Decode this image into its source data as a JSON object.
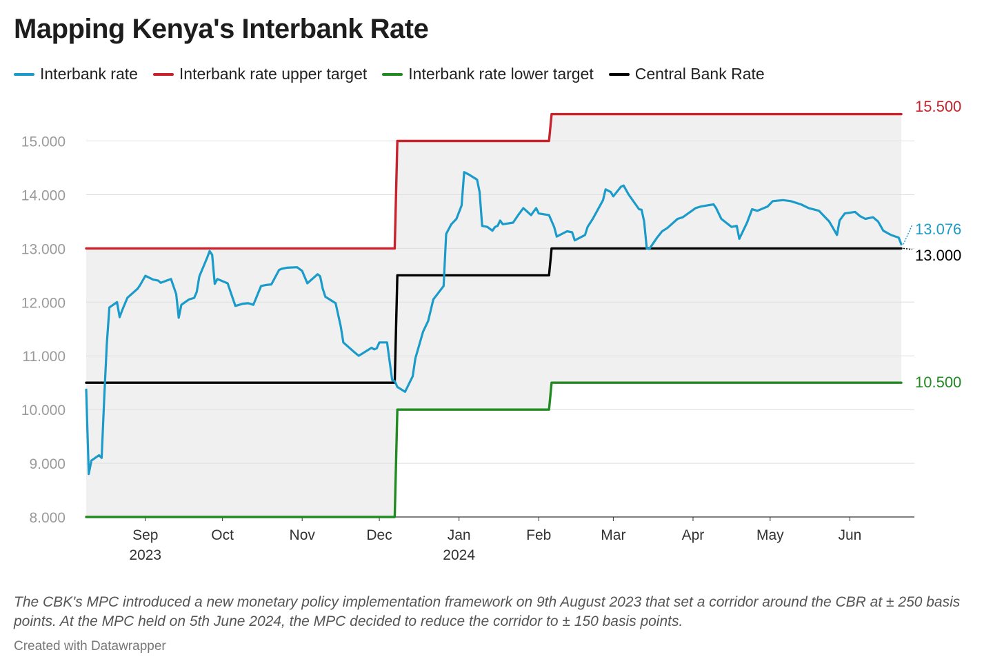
{
  "title": "Mapping Kenya's Interbank Rate",
  "notes": "The CBK's MPC introduced a new monetary policy implementation framework on 9th August 2023 that set a corridor around the CBR at ± 250 basis points. At the MPC held on 5th June 2024, the MPC decided to reduce the corridor to ± 150 basis points.",
  "credit": "Created with Datawrapper",
  "chart_data": {
    "type": "line",
    "y_ticks": [
      "8.000",
      "9.000",
      "10.000",
      "11.000",
      "12.000",
      "13.000",
      "14.000",
      "15.000"
    ],
    "ylim": [
      8,
      15.7
    ],
    "grid": true,
    "legend_position": "top",
    "x_tick_labels": [
      {
        "date": "2023-09-01",
        "label": "Sep",
        "year": "2023"
      },
      {
        "date": "2023-10-01",
        "label": "Oct",
        "year": ""
      },
      {
        "date": "2023-11-01",
        "label": "Nov",
        "year": ""
      },
      {
        "date": "2023-12-01",
        "label": "Dec",
        "year": ""
      },
      {
        "date": "2024-01-01",
        "label": "Jan",
        "year": "2024"
      },
      {
        "date": "2024-02-01",
        "label": "Feb",
        "year": ""
      },
      {
        "date": "2024-03-01",
        "label": "Mar",
        "year": ""
      },
      {
        "date": "2024-04-01",
        "label": "Apr",
        "year": ""
      },
      {
        "date": "2024-05-01",
        "label": "May",
        "year": ""
      },
      {
        "date": "2024-06-01",
        "label": "Jun",
        "year": ""
      }
    ],
    "series": [
      {
        "name": "Interbank rate",
        "color": "#1a9bc9",
        "end_label": "13.076",
        "points": [
          [
            "2023-08-09",
            10.37
          ],
          [
            "2023-08-10",
            8.8
          ],
          [
            "2023-08-11",
            9.05
          ],
          [
            "2023-08-14",
            9.15
          ],
          [
            "2023-08-15",
            9.1
          ],
          [
            "2023-08-16",
            10.2
          ],
          [
            "2023-08-17",
            11.2
          ],
          [
            "2023-08-18",
            11.9
          ],
          [
            "2023-08-21",
            12.0
          ],
          [
            "2023-08-22",
            11.72
          ],
          [
            "2023-08-23",
            11.85
          ],
          [
            "2023-08-25",
            12.08
          ],
          [
            "2023-08-29",
            12.25
          ],
          [
            "2023-08-30",
            12.32
          ],
          [
            "2023-09-01",
            12.49
          ],
          [
            "2023-09-04",
            12.42
          ],
          [
            "2023-09-06",
            12.4
          ],
          [
            "2023-09-07",
            12.36
          ],
          [
            "2023-09-11",
            12.43
          ],
          [
            "2023-09-13",
            12.15
          ],
          [
            "2023-09-14",
            11.71
          ],
          [
            "2023-09-15",
            11.95
          ],
          [
            "2023-09-18",
            12.05
          ],
          [
            "2023-09-20",
            12.08
          ],
          [
            "2023-09-21",
            12.19
          ],
          [
            "2023-09-22",
            12.48
          ],
          [
            "2023-09-25",
            12.82
          ],
          [
            "2023-09-26",
            12.95
          ],
          [
            "2023-09-27",
            12.88
          ],
          [
            "2023-09-28",
            12.34
          ],
          [
            "2023-09-29",
            12.43
          ],
          [
            "2023-10-03",
            12.35
          ],
          [
            "2023-10-06",
            11.93
          ],
          [
            "2023-10-09",
            11.97
          ],
          [
            "2023-10-11",
            11.98
          ],
          [
            "2023-10-13",
            11.95
          ],
          [
            "2023-10-16",
            12.3
          ],
          [
            "2023-10-18",
            12.32
          ],
          [
            "2023-10-20",
            12.33
          ],
          [
            "2023-10-23",
            12.6
          ],
          [
            "2023-10-24",
            12.62
          ],
          [
            "2023-10-26",
            12.64
          ],
          [
            "2023-10-30",
            12.65
          ],
          [
            "2023-11-01",
            12.58
          ],
          [
            "2023-11-03",
            12.35
          ],
          [
            "2023-11-07",
            12.52
          ],
          [
            "2023-11-08",
            12.48
          ],
          [
            "2023-11-09",
            12.25
          ],
          [
            "2023-11-10",
            12.1
          ],
          [
            "2023-11-14",
            11.98
          ],
          [
            "2023-11-16",
            11.55
          ],
          [
            "2023-11-17",
            11.25
          ],
          [
            "2023-11-21",
            11.08
          ],
          [
            "2023-11-23",
            11.0
          ],
          [
            "2023-11-28",
            11.15
          ],
          [
            "2023-11-29",
            11.12
          ],
          [
            "2023-11-30",
            11.14
          ],
          [
            "2023-12-01",
            11.25
          ],
          [
            "2023-12-04",
            11.25
          ],
          [
            "2023-12-06",
            10.55
          ],
          [
            "2023-12-07",
            10.53
          ],
          [
            "2023-12-08",
            10.42
          ],
          [
            "2023-12-11",
            10.33
          ],
          [
            "2023-12-14",
            10.62
          ],
          [
            "2023-12-15",
            10.95
          ],
          [
            "2023-12-18",
            11.45
          ],
          [
            "2023-12-20",
            11.65
          ],
          [
            "2023-12-22",
            12.05
          ],
          [
            "2023-12-26",
            12.3
          ],
          [
            "2023-12-27",
            13.27
          ],
          [
            "2023-12-29",
            13.45
          ],
          [
            "2023-12-31",
            13.55
          ],
          [
            "2024-01-02",
            13.8
          ],
          [
            "2024-01-03",
            14.42
          ],
          [
            "2024-01-05",
            14.37
          ],
          [
            "2024-01-08",
            14.28
          ],
          [
            "2024-01-09",
            14.05
          ],
          [
            "2024-01-10",
            13.42
          ],
          [
            "2024-01-12",
            13.4
          ],
          [
            "2024-01-14",
            13.33
          ],
          [
            "2024-01-15",
            13.4
          ],
          [
            "2024-01-16",
            13.42
          ],
          [
            "2024-01-17",
            13.52
          ],
          [
            "2024-01-18",
            13.45
          ],
          [
            "2024-01-22",
            13.48
          ],
          [
            "2024-01-24",
            13.62
          ],
          [
            "2024-01-26",
            13.75
          ],
          [
            "2024-01-29",
            13.62
          ],
          [
            "2024-01-31",
            13.75
          ],
          [
            "2024-02-01",
            13.65
          ],
          [
            "2024-02-05",
            13.62
          ],
          [
            "2024-02-07",
            13.4
          ],
          [
            "2024-02-08",
            13.22
          ],
          [
            "2024-02-12",
            13.32
          ],
          [
            "2024-02-14",
            13.3
          ],
          [
            "2024-02-15",
            13.15
          ],
          [
            "2024-02-19",
            13.25
          ],
          [
            "2024-02-20",
            13.4
          ],
          [
            "2024-02-22",
            13.55
          ],
          [
            "2024-02-26",
            13.9
          ],
          [
            "2024-02-27",
            14.1
          ],
          [
            "2024-02-29",
            14.05
          ],
          [
            "2024-03-01",
            13.97
          ],
          [
            "2024-03-04",
            14.15
          ],
          [
            "2024-03-05",
            14.17
          ],
          [
            "2024-03-07",
            14.0
          ],
          [
            "2024-03-11",
            13.73
          ],
          [
            "2024-03-12",
            13.72
          ],
          [
            "2024-03-13",
            13.5
          ],
          [
            "2024-03-14",
            13.0
          ],
          [
            "2024-03-15",
            12.99
          ],
          [
            "2024-03-18",
            13.2
          ],
          [
            "2024-03-20",
            13.32
          ],
          [
            "2024-03-22",
            13.38
          ],
          [
            "2024-03-26",
            13.55
          ],
          [
            "2024-03-28",
            13.58
          ],
          [
            "2024-04-02",
            13.75
          ],
          [
            "2024-04-04",
            13.78
          ],
          [
            "2024-04-09",
            13.82
          ],
          [
            "2024-04-10",
            13.75
          ],
          [
            "2024-04-12",
            13.55
          ],
          [
            "2024-04-16",
            13.4
          ],
          [
            "2024-04-18",
            13.42
          ],
          [
            "2024-04-19",
            13.18
          ],
          [
            "2024-04-22",
            13.48
          ],
          [
            "2024-04-24",
            13.73
          ],
          [
            "2024-04-26",
            13.7
          ],
          [
            "2024-04-30",
            13.78
          ],
          [
            "2024-05-02",
            13.88
          ],
          [
            "2024-05-06",
            13.9
          ],
          [
            "2024-05-09",
            13.88
          ],
          [
            "2024-05-13",
            13.82
          ],
          [
            "2024-05-16",
            13.75
          ],
          [
            "2024-05-20",
            13.7
          ],
          [
            "2024-05-22",
            13.6
          ],
          [
            "2024-05-24",
            13.5
          ],
          [
            "2024-05-27",
            13.25
          ],
          [
            "2024-05-28",
            13.52
          ],
          [
            "2024-05-30",
            13.65
          ],
          [
            "2024-06-03",
            13.68
          ],
          [
            "2024-06-05",
            13.6
          ],
          [
            "2024-06-07",
            13.55
          ],
          [
            "2024-06-10",
            13.58
          ],
          [
            "2024-06-12",
            13.5
          ],
          [
            "2024-06-14",
            13.33
          ],
          [
            "2024-06-17",
            13.25
          ],
          [
            "2024-06-20",
            13.2
          ],
          [
            "2024-06-21",
            13.076
          ]
        ]
      },
      {
        "name": "Interbank rate upper target",
        "color": "#c8232c",
        "end_label": "15.500",
        "points": [
          [
            "2023-08-09",
            13.0
          ],
          [
            "2023-12-07",
            13.0
          ],
          [
            "2023-12-08",
            15.0
          ],
          [
            "2024-02-05",
            15.0
          ],
          [
            "2024-02-06",
            15.5
          ],
          [
            "2024-06-21",
            15.5
          ]
        ]
      },
      {
        "name": "Interbank rate lower target",
        "color": "#218a21",
        "end_label": "10.500",
        "points": [
          [
            "2023-08-09",
            8.0
          ],
          [
            "2023-12-07",
            8.0
          ],
          [
            "2023-12-08",
            10.0
          ],
          [
            "2024-02-05",
            10.0
          ],
          [
            "2024-02-06",
            10.5
          ],
          [
            "2024-06-21",
            10.5
          ]
        ]
      },
      {
        "name": "Central Bank Rate",
        "color": "#000000",
        "end_label": "13.000",
        "points": [
          [
            "2023-08-09",
            10.5
          ],
          [
            "2023-12-07",
            10.5
          ],
          [
            "2023-12-08",
            12.5
          ],
          [
            "2024-02-05",
            12.5
          ],
          [
            "2024-02-06",
            13.0
          ],
          [
            "2024-06-21",
            13.0
          ]
        ]
      }
    ]
  }
}
